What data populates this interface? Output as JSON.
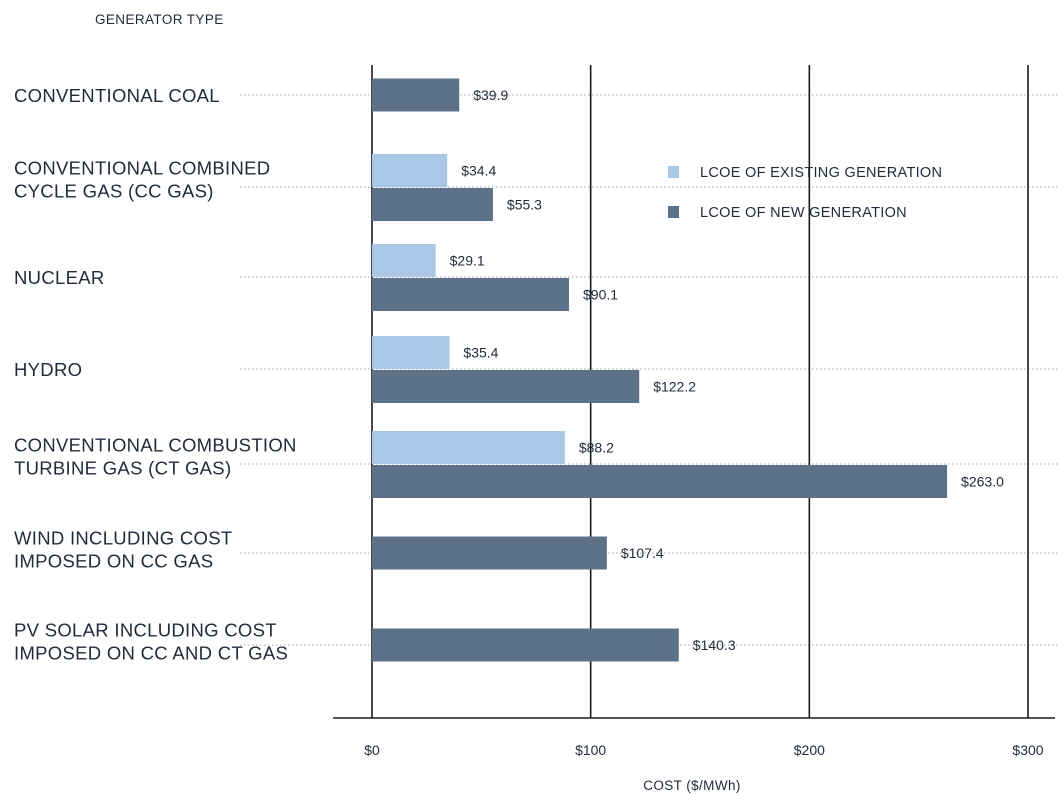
{
  "chart_data": {
    "type": "bar",
    "orientation": "horizontal",
    "y_axis_title": "GENERATOR TYPE",
    "xlabel": "COST ($/MWh)",
    "xlim": [
      0,
      300
    ],
    "x_ticks": [
      0,
      100,
      200,
      300
    ],
    "x_tick_labels": [
      "$0",
      "$100",
      "$200",
      "$300"
    ],
    "grid": "vertical",
    "legend_position": "right",
    "categories": [
      [
        "CONVENTIONAL COAL"
      ],
      [
        "CONVENTIONAL COMBINED",
        "CYCLE GAS (CC GAS)"
      ],
      [
        "NUCLEAR"
      ],
      [
        "HYDRO"
      ],
      [
        "CONVENTIONAL COMBUSTION",
        "TURBINE GAS (CT GAS)"
      ],
      [
        "WIND INCLUDING COST",
        "IMPOSED ON CC GAS"
      ],
      [
        "PV SOLAR INCLUDING COST",
        "IMPOSED ON CC  AND CT GAS"
      ]
    ],
    "series": [
      {
        "name": "LCOE OF EXISTING GENERATION",
        "color": "#a9c8e8",
        "values": [
          null,
          34.4,
          29.1,
          35.4,
          88.2,
          null,
          null
        ],
        "labels": [
          "",
          "$34.4",
          "$29.1",
          "$35.4",
          "$88.2",
          "",
          ""
        ]
      },
      {
        "name": "LCOE OF NEW GENERATION",
        "color": "#5d7189",
        "values": [
          39.9,
          55.3,
          90.1,
          122.2,
          263.0,
          107.4,
          140.3
        ],
        "labels": [
          "$39.9",
          "$55.3",
          "$90.1",
          "$122.2",
          "$263.0",
          "$107.4",
          "$140.3"
        ]
      }
    ]
  }
}
